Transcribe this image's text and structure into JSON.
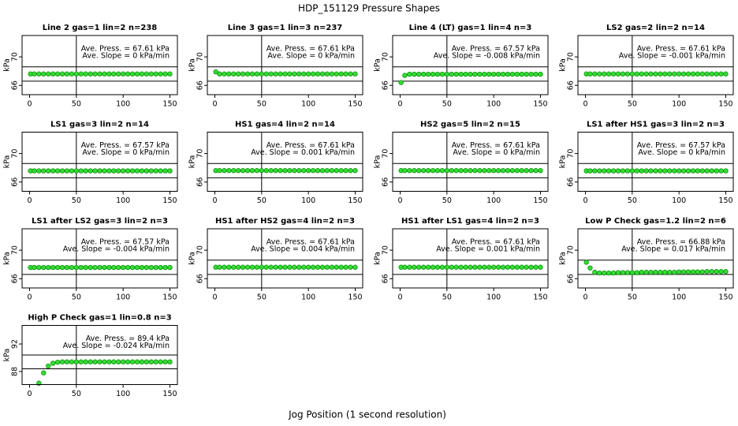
{
  "title": "HDP_151129  Pressure Shapes",
  "xlabel": "Jog Position (1 second resolution)",
  "chart_data": [
    {
      "type": "scatter",
      "title": "Line 2 gas=1 lin=2 n=238",
      "annotations": [
        "Ave. Press. = 67.61  kPa",
        "Ave. Slope = 0  kPa/min"
      ],
      "ylabel": "kPa",
      "color": "#33dd33",
      "x": [
        1,
        5,
        10,
        15,
        20,
        25,
        30,
        35,
        40,
        45,
        50,
        55,
        60,
        65,
        70,
        75,
        80,
        85,
        90,
        95,
        100,
        105,
        110,
        115,
        120,
        125,
        130,
        135,
        140,
        145,
        150
      ],
      "values": [
        67.61,
        67.61,
        67.61,
        67.61,
        67.61,
        67.61,
        67.61,
        67.61,
        67.61,
        67.61,
        67.61,
        67.61,
        67.61,
        67.61,
        67.61,
        67.61,
        67.61,
        67.61,
        67.61,
        67.61,
        67.61,
        67.61,
        67.61,
        67.61,
        67.61,
        67.61,
        67.61,
        67.61,
        67.61,
        67.61,
        67.61
      ],
      "xlim": [
        -8,
        158
      ],
      "ylim": [
        64.7,
        73
      ],
      "xticks": [
        0,
        50,
        100,
        150
      ],
      "yticks": [
        66,
        70
      ],
      "hlines": [
        68.6,
        66.6
      ],
      "vlines": [
        50
      ]
    },
    {
      "type": "scatter",
      "title": "Line 3 gas=1 lin=3 n=237",
      "annotations": [
        "Ave. Press. = 67.61  kPa",
        "Ave. Slope = 0  kPa/min"
      ],
      "ylabel": "kPa",
      "color": "#33dd33",
      "x": [
        1,
        5,
        10,
        15,
        20,
        25,
        30,
        35,
        40,
        45,
        50,
        55,
        60,
        65,
        70,
        75,
        80,
        85,
        90,
        95,
        100,
        105,
        110,
        115,
        120,
        125,
        130,
        135,
        140,
        145,
        150
      ],
      "values": [
        67.9,
        67.61,
        67.61,
        67.61,
        67.61,
        67.61,
        67.61,
        67.61,
        67.61,
        67.61,
        67.61,
        67.61,
        67.61,
        67.61,
        67.61,
        67.61,
        67.61,
        67.61,
        67.61,
        67.61,
        67.61,
        67.61,
        67.61,
        67.61,
        67.61,
        67.61,
        67.61,
        67.61,
        67.61,
        67.61,
        67.61
      ],
      "xlim": [
        -8,
        158
      ],
      "ylim": [
        64.7,
        73
      ],
      "xticks": [
        0,
        50,
        100,
        150
      ],
      "yticks": [
        66,
        70
      ],
      "hlines": [
        68.6,
        66.6
      ],
      "vlines": [
        50
      ]
    },
    {
      "type": "scatter",
      "title": "Line 4 (LT) gas=1 lin=4 n=3",
      "annotations": [
        "Ave. Press. = 67.57  kPa",
        "Ave. Slope = -0.008  kPa/min"
      ],
      "ylabel": "kPa",
      "color": "#33dd33",
      "x": [
        1,
        5,
        10,
        15,
        20,
        25,
        30,
        35,
        40,
        45,
        50,
        55,
        60,
        65,
        70,
        75,
        80,
        85,
        90,
        95,
        100,
        105,
        110,
        115,
        120,
        125,
        130,
        135,
        140,
        145,
        150
      ],
      "values": [
        66.4,
        67.4,
        67.57,
        67.57,
        67.57,
        67.57,
        67.57,
        67.57,
        67.57,
        67.57,
        67.57,
        67.57,
        67.57,
        67.57,
        67.57,
        67.57,
        67.57,
        67.57,
        67.57,
        67.57,
        67.57,
        67.57,
        67.57,
        67.57,
        67.57,
        67.57,
        67.57,
        67.57,
        67.57,
        67.57,
        67.57
      ],
      "xlim": [
        -8,
        158
      ],
      "ylim": [
        64.7,
        73
      ],
      "xticks": [
        0,
        50,
        100,
        150
      ],
      "yticks": [
        66,
        70
      ],
      "hlines": [
        68.6,
        66.6
      ],
      "vlines": [
        50
      ]
    },
    {
      "type": "scatter",
      "title": "LS2 gas=2 lin=2 n=14",
      "annotations": [
        "Ave. Press. = 67.61  kPa",
        "Ave. Slope = -0.001  kPa/min"
      ],
      "ylabel": "kPa",
      "color": "#33dd33",
      "x": [
        1,
        5,
        10,
        15,
        20,
        25,
        30,
        35,
        40,
        45,
        50,
        55,
        60,
        65,
        70,
        75,
        80,
        85,
        90,
        95,
        100,
        105,
        110,
        115,
        120,
        125,
        130,
        135,
        140,
        145,
        150
      ],
      "values": [
        67.61,
        67.61,
        67.61,
        67.61,
        67.61,
        67.61,
        67.61,
        67.61,
        67.61,
        67.61,
        67.61,
        67.61,
        67.61,
        67.61,
        67.61,
        67.61,
        67.61,
        67.61,
        67.61,
        67.61,
        67.61,
        67.61,
        67.61,
        67.61,
        67.61,
        67.61,
        67.61,
        67.61,
        67.61,
        67.61,
        67.61
      ],
      "xlim": [
        -8,
        158
      ],
      "ylim": [
        64.7,
        73
      ],
      "xticks": [
        0,
        50,
        100,
        150
      ],
      "yticks": [
        66,
        70
      ],
      "hlines": [
        68.6,
        66.6
      ],
      "vlines": [
        50
      ]
    },
    {
      "type": "scatter",
      "title": "LS1 gas=3 lin=2 n=14",
      "annotations": [
        "Ave. Press. = 67.57  kPa",
        "Ave. Slope = 0  kPa/min"
      ],
      "ylabel": "kPa",
      "color": "#33dd33",
      "x": [
        1,
        5,
        10,
        15,
        20,
        25,
        30,
        35,
        40,
        45,
        50,
        55,
        60,
        65,
        70,
        75,
        80,
        85,
        90,
        95,
        100,
        105,
        110,
        115,
        120,
        125,
        130,
        135,
        140,
        145,
        150
      ],
      "values": [
        67.57,
        67.57,
        67.57,
        67.57,
        67.57,
        67.57,
        67.57,
        67.57,
        67.57,
        67.57,
        67.57,
        67.57,
        67.57,
        67.57,
        67.57,
        67.57,
        67.57,
        67.57,
        67.57,
        67.57,
        67.57,
        67.57,
        67.57,
        67.57,
        67.57,
        67.57,
        67.57,
        67.57,
        67.57,
        67.57,
        67.57
      ],
      "xlim": [
        -8,
        158
      ],
      "ylim": [
        64.7,
        73
      ],
      "xticks": [
        0,
        50,
        100,
        150
      ],
      "yticks": [
        66,
        70
      ],
      "hlines": [
        68.6,
        66.6
      ],
      "vlines": [
        50
      ]
    },
    {
      "type": "scatter",
      "title": "HS1 gas=4 lin=2 n=14",
      "annotations": [
        "Ave. Press. = 67.61  kPa",
        "Ave. Slope = 0.001  kPa/min"
      ],
      "ylabel": "kPa",
      "color": "#33dd33",
      "x": [
        1,
        5,
        10,
        15,
        20,
        25,
        30,
        35,
        40,
        45,
        50,
        55,
        60,
        65,
        70,
        75,
        80,
        85,
        90,
        95,
        100,
        105,
        110,
        115,
        120,
        125,
        130,
        135,
        140,
        145,
        150
      ],
      "values": [
        67.61,
        67.61,
        67.61,
        67.61,
        67.61,
        67.61,
        67.61,
        67.61,
        67.61,
        67.61,
        67.61,
        67.61,
        67.61,
        67.61,
        67.61,
        67.61,
        67.61,
        67.61,
        67.61,
        67.61,
        67.61,
        67.61,
        67.61,
        67.61,
        67.61,
        67.61,
        67.61,
        67.61,
        67.61,
        67.61,
        67.61
      ],
      "xlim": [
        -8,
        158
      ],
      "ylim": [
        64.7,
        73
      ],
      "xticks": [
        0,
        50,
        100,
        150
      ],
      "yticks": [
        66,
        70
      ],
      "hlines": [
        68.6,
        66.6
      ],
      "vlines": [
        50
      ]
    },
    {
      "type": "scatter",
      "title": "HS2 gas=5 lin=2 n=15",
      "annotations": [
        "Ave. Press. = 67.61  kPa",
        "Ave. Slope = 0  kPa/min"
      ],
      "ylabel": "kPa",
      "color": "#33dd33",
      "x": [
        1,
        5,
        10,
        15,
        20,
        25,
        30,
        35,
        40,
        45,
        50,
        55,
        60,
        65,
        70,
        75,
        80,
        85,
        90,
        95,
        100,
        105,
        110,
        115,
        120,
        125,
        130,
        135,
        140,
        145,
        150
      ],
      "values": [
        67.61,
        67.61,
        67.61,
        67.61,
        67.61,
        67.61,
        67.61,
        67.61,
        67.61,
        67.61,
        67.61,
        67.61,
        67.61,
        67.61,
        67.61,
        67.61,
        67.61,
        67.61,
        67.61,
        67.61,
        67.61,
        67.61,
        67.61,
        67.61,
        67.61,
        67.61,
        67.61,
        67.61,
        67.61,
        67.61,
        67.61
      ],
      "xlim": [
        -8,
        158
      ],
      "ylim": [
        64.7,
        73
      ],
      "xticks": [
        0,
        50,
        100,
        150
      ],
      "yticks": [
        66,
        70
      ],
      "hlines": [
        68.6,
        66.6
      ],
      "vlines": [
        50
      ]
    },
    {
      "type": "scatter",
      "title": "LS1 after HS1 gas=3 lin=2 n=3",
      "annotations": [
        "Ave. Press. = 67.57  kPa",
        "Ave. Slope = 0  kPa/min"
      ],
      "ylabel": "kPa",
      "color": "#33dd33",
      "x": [
        1,
        5,
        10,
        15,
        20,
        25,
        30,
        35,
        40,
        45,
        50,
        55,
        60,
        65,
        70,
        75,
        80,
        85,
        90,
        95,
        100,
        105,
        110,
        115,
        120,
        125,
        130,
        135,
        140,
        145,
        150
      ],
      "values": [
        67.57,
        67.57,
        67.57,
        67.57,
        67.57,
        67.57,
        67.57,
        67.57,
        67.57,
        67.57,
        67.57,
        67.57,
        67.57,
        67.57,
        67.57,
        67.57,
        67.57,
        67.57,
        67.57,
        67.57,
        67.57,
        67.57,
        67.57,
        67.57,
        67.57,
        67.57,
        67.57,
        67.57,
        67.57,
        67.57,
        67.57
      ],
      "xlim": [
        -8,
        158
      ],
      "ylim": [
        64.7,
        73
      ],
      "xticks": [
        0,
        50,
        100,
        150
      ],
      "yticks": [
        66,
        70
      ],
      "hlines": [
        68.6,
        66.6
      ],
      "vlines": [
        50
      ]
    },
    {
      "type": "scatter",
      "title": "LS1 after LS2 gas=3 lin=2 n=3",
      "annotations": [
        "Ave. Press. = 67.57  kPa",
        "Ave. Slope = -0.004  kPa/min"
      ],
      "ylabel": "kPa",
      "color": "#33dd33",
      "x": [
        1,
        5,
        10,
        15,
        20,
        25,
        30,
        35,
        40,
        45,
        50,
        55,
        60,
        65,
        70,
        75,
        80,
        85,
        90,
        95,
        100,
        105,
        110,
        115,
        120,
        125,
        130,
        135,
        140,
        145,
        150
      ],
      "values": [
        67.57,
        67.57,
        67.57,
        67.57,
        67.57,
        67.57,
        67.57,
        67.57,
        67.57,
        67.57,
        67.57,
        67.57,
        67.57,
        67.57,
        67.57,
        67.57,
        67.57,
        67.57,
        67.57,
        67.57,
        67.57,
        67.57,
        67.57,
        67.57,
        67.57,
        67.57,
        67.57,
        67.57,
        67.57,
        67.57,
        67.57
      ],
      "xlim": [
        -8,
        158
      ],
      "ylim": [
        64.7,
        73
      ],
      "xticks": [
        0,
        50,
        100,
        150
      ],
      "yticks": [
        66,
        70
      ],
      "hlines": [
        68.6,
        66.6
      ],
      "vlines": [
        50
      ]
    },
    {
      "type": "scatter",
      "title": "HS1 after HS2 gas=4 lin=2 n=3",
      "annotations": [
        "Ave. Press. = 67.61  kPa",
        "Ave. Slope = 0.004  kPa/min"
      ],
      "ylabel": "kPa",
      "color": "#33dd33",
      "x": [
        1,
        5,
        10,
        15,
        20,
        25,
        30,
        35,
        40,
        45,
        50,
        55,
        60,
        65,
        70,
        75,
        80,
        85,
        90,
        95,
        100,
        105,
        110,
        115,
        120,
        125,
        130,
        135,
        140,
        145,
        150
      ],
      "values": [
        67.61,
        67.61,
        67.61,
        67.61,
        67.61,
        67.61,
        67.61,
        67.61,
        67.61,
        67.61,
        67.61,
        67.61,
        67.61,
        67.61,
        67.61,
        67.61,
        67.61,
        67.61,
        67.61,
        67.61,
        67.61,
        67.61,
        67.61,
        67.61,
        67.61,
        67.61,
        67.61,
        67.61,
        67.61,
        67.61,
        67.61
      ],
      "xlim": [
        -8,
        158
      ],
      "ylim": [
        64.7,
        73
      ],
      "xticks": [
        0,
        50,
        100,
        150
      ],
      "yticks": [
        66,
        70
      ],
      "hlines": [
        68.6,
        66.6
      ],
      "vlines": [
        50
      ]
    },
    {
      "type": "scatter",
      "title": "HS1 after LS1 gas=4 lin=2 n=3",
      "annotations": [
        "Ave. Press. = 67.61  kPa",
        "Ave. Slope = 0.001  kPa/min"
      ],
      "ylabel": "kPa",
      "color": "#33dd33",
      "x": [
        1,
        5,
        10,
        15,
        20,
        25,
        30,
        35,
        40,
        45,
        50,
        55,
        60,
        65,
        70,
        75,
        80,
        85,
        90,
        95,
        100,
        105,
        110,
        115,
        120,
        125,
        130,
        135,
        140,
        145,
        150
      ],
      "values": [
        67.61,
        67.61,
        67.61,
        67.61,
        67.61,
        67.61,
        67.61,
        67.61,
        67.61,
        67.61,
        67.61,
        67.61,
        67.61,
        67.61,
        67.61,
        67.61,
        67.61,
        67.61,
        67.61,
        67.61,
        67.61,
        67.61,
        67.61,
        67.61,
        67.61,
        67.61,
        67.61,
        67.61,
        67.61,
        67.61,
        67.61
      ],
      "xlim": [
        -8,
        158
      ],
      "ylim": [
        64.7,
        73
      ],
      "xticks": [
        0,
        50,
        100,
        150
      ],
      "yticks": [
        66,
        70
      ],
      "hlines": [
        68.6,
        66.6
      ],
      "vlines": [
        50
      ]
    },
    {
      "type": "scatter",
      "title": "Low P Check gas=1.2 lin=2 n=6",
      "annotations": [
        "Ave. Press. = 66.88  kPa",
        "Ave. Slope = 0.017  kPa/min"
      ],
      "ylabel": "kPa",
      "color": "#33dd33",
      "x": [
        1,
        5,
        10,
        15,
        20,
        25,
        30,
        35,
        40,
        45,
        50,
        55,
        60,
        65,
        70,
        75,
        80,
        85,
        90,
        95,
        100,
        105,
        110,
        115,
        120,
        125,
        130,
        135,
        140,
        145,
        150
      ],
      "values": [
        68.3,
        67.5,
        66.9,
        66.8,
        66.8,
        66.8,
        66.8,
        66.85,
        66.85,
        66.85,
        66.85,
        66.85,
        66.9,
        66.9,
        66.9,
        66.9,
        66.9,
        66.9,
        66.9,
        66.9,
        66.95,
        66.95,
        66.95,
        66.95,
        66.95,
        66.95,
        67.0,
        67.0,
        67.0,
        67.0,
        67.0
      ],
      "xlim": [
        -8,
        158
      ],
      "ylim": [
        64.7,
        73
      ],
      "xticks": [
        0,
        50,
        100,
        150
      ],
      "yticks": [
        66,
        70
      ],
      "hlines": [
        68.6,
        66.6
      ],
      "vlines": [
        50
      ]
    },
    {
      "type": "scatter",
      "title": "High P Check gas=1 lin=0.8 n=3",
      "annotations": [
        "Ave. Press. = 89.4  kPa",
        "Ave. Slope = -0.024  kPa/min"
      ],
      "ylabel": "kPa",
      "color": "#33dd33",
      "x": [
        1,
        5,
        10,
        15,
        20,
        25,
        30,
        35,
        40,
        45,
        50,
        55,
        60,
        65,
        70,
        75,
        80,
        85,
        90,
        95,
        100,
        105,
        110,
        115,
        120,
        125,
        130,
        135,
        140,
        145,
        150
      ],
      "values": [
        null,
        null,
        86.3,
        87.8,
        88.8,
        89.2,
        89.35,
        89.4,
        89.4,
        89.4,
        89.4,
        89.4,
        89.4,
        89.4,
        89.4,
        89.4,
        89.4,
        89.4,
        89.4,
        89.4,
        89.4,
        89.4,
        89.4,
        89.4,
        89.4,
        89.4,
        89.4,
        89.4,
        89.4,
        89.4,
        89.4
      ],
      "xlim": [
        -8,
        158
      ],
      "ylim": [
        86.1,
        94.7
      ],
      "xticks": [
        0,
        50,
        100,
        150
      ],
      "yticks": [
        88,
        92
      ],
      "hlines": [
        90.4,
        88.4
      ],
      "vlines": [
        50
      ]
    }
  ]
}
